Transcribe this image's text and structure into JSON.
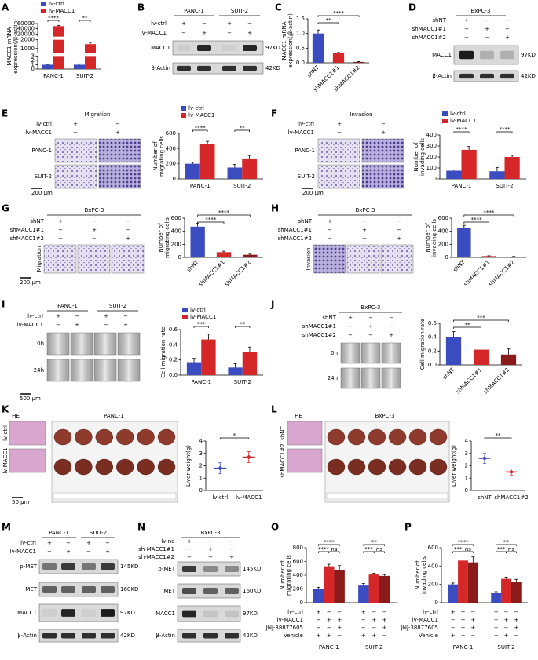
{
  "panels": [
    {
      "letter": "A"
    },
    {
      "letter": "B",
      "headers": [
        "PANC-1",
        "SUIT-2"
      ],
      "sign_rows": [
        {
          "label": "lv-ctrl",
          "signs": [
            "+",
            "−",
            "+",
            "−"
          ]
        },
        {
          "label": "lv-MACC1",
          "signs": [
            "−",
            "+",
            "−",
            "+"
          ]
        }
      ],
      "blots": [
        {
          "label": "MACC1",
          "size": "97KD"
        },
        {
          "label": "β-Actin",
          "size": "42KD"
        }
      ]
    },
    {
      "letter": "C"
    },
    {
      "letter": "D",
      "headers": [
        "BxPC-3"
      ],
      "sign_rows": [
        {
          "label": "shNT",
          "signs": [
            "+",
            "−",
            "−"
          ]
        },
        {
          "label": "shMACC1#1",
          "signs": [
            "−",
            "+",
            "−"
          ]
        },
        {
          "label": "shMACC1#2",
          "signs": [
            "−",
            "−",
            "+"
          ]
        }
      ],
      "blots": [
        {
          "label": "MACC1",
          "size": "97KD"
        },
        {
          "label": "β-Actin",
          "size": "42KD"
        }
      ]
    },
    {
      "letter": "E",
      "title": "Migration",
      "sign_rows": [
        {
          "label": "lv-ctrl",
          "signs": [
            "+",
            "−"
          ]
        },
        {
          "label": "lv-MACC1",
          "signs": [
            "−",
            "+"
          ]
        }
      ],
      "row_labels": [
        "PANC-1",
        "SUIT-2"
      ],
      "scale": "200 μm"
    },
    {
      "letter": "F",
      "title": "Invasion",
      "sign_rows": [
        {
          "label": "lv-ctrl",
          "signs": [
            "+",
            "−"
          ]
        },
        {
          "label": "lv-MACC1",
          "signs": [
            "−",
            "+"
          ]
        }
      ],
      "row_labels": [
        "PANC-1",
        "SUIT-2"
      ],
      "scale": "200 μm"
    },
    {
      "letter": "G",
      "headers": [
        "BxPC-3"
      ],
      "sign_rows": [
        {
          "label": "shNT",
          "signs": [
            "+",
            "−",
            "−"
          ]
        },
        {
          "label": "shMACC1#1",
          "signs": [
            "−",
            "+",
            "−"
          ]
        },
        {
          "label": "shMACC1#2",
          "signs": [
            "−",
            "−",
            "+"
          ]
        }
      ],
      "row_labels": [
        "Migration"
      ],
      "scale": "200 μm"
    },
    {
      "letter": "H",
      "headers": [
        "BxPC-3"
      ],
      "sign_rows": [
        {
          "label": "shNT",
          "signs": [
            "+",
            "−",
            "−"
          ]
        },
        {
          "label": "shMACC1#1",
          "signs": [
            "−",
            "+",
            "−"
          ]
        },
        {
          "label": "shMACC1#2",
          "signs": [
            "−",
            "−",
            "+"
          ]
        }
      ],
      "row_labels": [
        "Invasion"
      ]
    },
    {
      "letter": "I",
      "headers": [
        "PANC-1",
        "SUIT-2"
      ],
      "sign_rows": [
        {
          "label": "lv-ctrl",
          "signs": [
            "+",
            "−",
            "+",
            "−"
          ]
        },
        {
          "label": "lv-MACC1",
          "signs": [
            "−",
            "+",
            "−",
            "+"
          ]
        }
      ],
      "row_labels": [
        "0h",
        "24h"
      ],
      "scale": "500 μm"
    },
    {
      "letter": "J",
      "headers": [
        "BxPC-3"
      ],
      "sign_rows": [
        {
          "label": "shNT",
          "signs": [
            "+",
            "−",
            "−"
          ]
        },
        {
          "label": "shMACC1#1",
          "signs": [
            "−",
            "+",
            "−"
          ]
        },
        {
          "label": "shMACC1#2",
          "signs": [
            "−",
            "−",
            "+"
          ]
        }
      ],
      "row_labels": [
        "0h",
        "24h"
      ]
    },
    {
      "letter": "K",
      "stain": "HE",
      "title": "PANC-1",
      "row_labels": [
        "lv-ctrl",
        "lv-MACC1"
      ],
      "scale": "50 μm"
    },
    {
      "letter": "L",
      "stain": "HE",
      "title": "BxPC-3",
      "row_labels": [
        "shNT",
        "shMACC1#2"
      ]
    },
    {
      "letter": "M",
      "headers": [
        "PANC-1",
        "SUIT-2"
      ],
      "sign_rows": [
        {
          "label": "lv-ctrl",
          "signs": [
            "+",
            "−",
            "+",
            "−"
          ]
        },
        {
          "label": "lv-MACC1",
          "signs": [
            "−",
            "+",
            "−",
            "+"
          ]
        }
      ],
      "blots": [
        {
          "label": "p-MET",
          "size": "145KD"
        },
        {
          "label": "MET",
          "size": "160KD"
        },
        {
          "label": "MACC1",
          "size": "97KD"
        },
        {
          "label": "β-Actin",
          "size": "42KD"
        }
      ]
    },
    {
      "letter": "N",
      "headers": [
        "BxPC-3"
      ],
      "sign_rows": [
        {
          "label": "lv-nc",
          "signs": [
            "+",
            "−",
            "−"
          ]
        },
        {
          "label": "sh-MACC1#1",
          "signs": [
            "−",
            "+",
            "−"
          ]
        },
        {
          "label": "sh-MACC1#2",
          "signs": [
            "−",
            "−",
            "+"
          ]
        }
      ],
      "blots": [
        {
          "label": "p-MET",
          "size": "145KD"
        },
        {
          "label": "MET",
          "size": "160KD"
        },
        {
          "label": "MACC1",
          "size": "97KD"
        },
        {
          "label": "β-Actin",
          "size": "42KD"
        }
      ]
    },
    {
      "letter": "O",
      "sign_rows": [
        {
          "label": "lv-ctrl",
          "signs": [
            "+",
            "−",
            "−",
            "+",
            "−",
            "−"
          ]
        },
        {
          "label": "lv-MACC1",
          "signs": [
            "−",
            "+",
            "+",
            "−",
            "+",
            "+"
          ]
        },
        {
          "label": "JNJ-38877605",
          "signs": [
            "−",
            "−",
            "+",
            "−",
            "−",
            "+"
          ]
        },
        {
          "label": "Vehicle",
          "signs": [
            "+",
            "+",
            "−",
            "+",
            "+",
            "−"
          ]
        }
      ]
    },
    {
      "letter": "P",
      "sign_rows": [
        {
          "label": "lv-ctrl",
          "signs": [
            "+",
            "−",
            "−",
            "+",
            "−",
            "−"
          ]
        },
        {
          "label": "lv-MACC1",
          "signs": [
            "−",
            "+",
            "+",
            "−",
            "+",
            "+"
          ]
        },
        {
          "label": "JNJ-38877605",
          "signs": [
            "−",
            "−",
            "+",
            "−",
            "−",
            "+"
          ]
        },
        {
          "label": "Vehicle",
          "signs": [
            "+",
            "+",
            "−",
            "+",
            "+",
            "−"
          ]
        }
      ]
    }
  ],
  "chart_data": [
    {
      "type": "bar",
      "ylabel": [
        "MACC1 mRNA",
        "expression(/β-actin)"
      ],
      "categories": [
        "PANC-1",
        "SUIT-2"
      ],
      "series": [
        {
          "name": "lv-ctrl",
          "color": "#3b4cc0",
          "values": [
            1,
            1
          ],
          "errors": [
            0.1,
            0.2
          ]
        },
        {
          "name": "lv-MACC1",
          "color": "#d62728",
          "values": [
            50000,
            1500
          ],
          "errors": [
            3000,
            200
          ]
        }
      ],
      "ylim": [
        [
          0,
          3
        ],
        [
          500,
          2000
        ],
        [
          10000,
          60000
        ]
      ],
      "yticks": [
        [
          0,
          1,
          2,
          3
        ],
        [
          1000,
          2000
        ],
        [
          20000,
          40000,
          60000
        ]
      ],
      "annotations": [
        "****",
        "**"
      ]
    },
    {
      "type": "bar",
      "ylabel": [
        "MACC1 mRNA",
        "expression(/β-actin)"
      ],
      "categories": [
        "shNT",
        "shMACC1#1",
        "shMACC1#2"
      ],
      "values": [
        1.0,
        0.33,
        0.03
      ],
      "errors": [
        0.12,
        0.02,
        0.01
      ],
      "colors": [
        "#3b4cc0",
        "#d62728",
        "#8b1a1a"
      ],
      "ylim": [
        0,
        1.5
      ],
      "yticks": [
        {
          "value": 0,
          "label": "0.0"
        },
        0.5,
        {
          "value": 1,
          "label": "1.0"
        },
        1.5
      ],
      "annotations": [
        "**",
        "****"
      ]
    },
    {
      "type": "bar",
      "ylabel": [
        "Number of",
        "migrating cells"
      ],
      "categories": [
        "PANC-1",
        "SUIT-2"
      ],
      "series": [
        {
          "name": "lv-ctrl",
          "color": "#3b4cc0",
          "values": [
            200,
            150
          ],
          "errors": [
            20,
            40
          ]
        },
        {
          "name": "lv-MACC1",
          "color": "#d62728",
          "values": [
            460,
            270
          ],
          "errors": [
            35,
            40
          ]
        }
      ],
      "ylim": [
        0,
        600
      ],
      "yticks": [
        0,
        200,
        400,
        600
      ],
      "annotations": [
        "****",
        "**"
      ]
    },
    {
      "type": "bar",
      "ylabel": [
        "Number of",
        "invading cells"
      ],
      "categories": [
        "PANC-1",
        "SUIT-2"
      ],
      "series": [
        {
          "name": "lv-ctrl",
          "color": "#3b4cc0",
          "values": [
            75,
            70
          ],
          "errors": [
            8,
            35
          ]
        },
        {
          "name": "lv-MACC1",
          "color": "#d62728",
          "values": [
            265,
            200
          ],
          "errors": [
            30,
            15
          ]
        }
      ],
      "ylim": [
        0,
        400
      ],
      "yticks": [
        0,
        100,
        200,
        300,
        400
      ],
      "annotations": [
        "****",
        "****"
      ]
    },
    {
      "type": "bar",
      "ylabel": [
        "Number of",
        "migrating cells"
      ],
      "categories": [
        "shNT",
        "shMACC1#1",
        "shMACC1#2"
      ],
      "values": [
        470,
        80,
        40
      ],
      "errors": [
        50,
        15,
        10
      ],
      "colors": [
        "#3b4cc0",
        "#d62728",
        "#8b1a1a"
      ],
      "ylim": [
        0,
        600
      ],
      "yticks": [
        0,
        200,
        400,
        600
      ],
      "annotations": [
        "****",
        "****"
      ]
    },
    {
      "type": "bar",
      "ylabel": [
        "Number of",
        "invading cells"
      ],
      "categories": [
        "shNT",
        "shMACC1#1",
        "shMACC1#2"
      ],
      "values": [
        450,
        20,
        10
      ],
      "errors": [
        40,
        5,
        5
      ],
      "colors": [
        "#3b4cc0",
        "#d62728",
        "#8b1a1a"
      ],
      "ylim": [
        0,
        600
      ],
      "yticks": [
        0,
        200,
        400,
        600
      ],
      "annotations": [
        "****",
        "****"
      ]
    },
    {
      "type": "bar",
      "ylabel": [
        "Cell migration rate"
      ],
      "categories": [
        "PANC-1",
        "SUIT-2"
      ],
      "series": [
        {
          "name": "lv-ctrl",
          "color": "#3b4cc0",
          "values": [
            0.17,
            0.1
          ],
          "errors": [
            0.05,
            0.05
          ]
        },
        {
          "name": "lv-MACC1",
          "color": "#d62728",
          "values": [
            0.47,
            0.3
          ],
          "errors": [
            0.07,
            0.07
          ]
        }
      ],
      "ylim": [
        0,
        0.6
      ],
      "yticks": [
        {
          "value": 0,
          "label": "0.0"
        },
        0.2,
        0.4,
        0.6
      ],
      "annotations": [
        "***",
        "**"
      ]
    },
    {
      "type": "bar",
      "ylabel": [
        "Cell migration rate"
      ],
      "categories": [
        "shNT",
        "shMACC1#1",
        "shMACC1#2"
      ],
      "values": [
        0.4,
        0.22,
        0.15
      ],
      "errors": [
        0.08,
        0.07,
        0.08
      ],
      "colors": [
        "#3b4cc0",
        "#d62728",
        "#8b1a1a"
      ],
      "ylim": [
        0,
        0.6
      ],
      "yticks": [
        {
          "value": 0,
          "label": "0.0"
        },
        0.2,
        0.4,
        0.6
      ],
      "annotations": [
        "**",
        "***"
      ]
    },
    {
      "type": "dot",
      "ylabel": [
        "Liver weight(g)"
      ],
      "categories": [
        "lv-ctrl",
        "lv-MACC1"
      ],
      "values": [
        1.8,
        2.7
      ],
      "errors": [
        0.45,
        0.45
      ],
      "colors": [
        "#3b4cc0",
        "#d62728"
      ],
      "ylim": [
        0,
        4
      ],
      "yticks": [
        0,
        1,
        2,
        3,
        4
      ],
      "annotations": [
        "*"
      ]
    },
    {
      "type": "dot",
      "ylabel": [
        "Liver weight(g)"
      ],
      "categories": [
        "shNT",
        "shMACC1#2"
      ],
      "values": [
        2.6,
        1.5
      ],
      "errors": [
        0.4,
        0.25
      ],
      "colors": [
        "#3b4cc0",
        "#d62728"
      ],
      "ylim": [
        0,
        4
      ],
      "yticks": [
        0,
        1,
        2,
        3,
        4
      ],
      "annotations": [
        "**"
      ]
    },
    {
      "type": "bar",
      "ylabel": [
        "Number of",
        "migrating cells"
      ],
      "categories": [
        "PANC-1",
        "SUIT-2"
      ],
      "series": [
        {
          "color": "#3b4cc0",
          "values": [
            200,
            250
          ],
          "errors": [
            25,
            30
          ]
        },
        {
          "color": "#d62728",
          "values": [
            530,
            410
          ],
          "errors": [
            30,
            20
          ]
        },
        {
          "color": "#8b1a1a",
          "values": [
            480,
            390
          ],
          "errors": [
            60,
            20
          ]
        }
      ],
      "ylim": [
        0,
        800
      ],
      "yticks": [
        0,
        200,
        400,
        600,
        800
      ],
      "annotations": [
        "****",
        "****",
        "ns",
        "**",
        "***",
        "ns"
      ]
    },
    {
      "type": "bar",
      "ylabel": [
        "Number of",
        "invading cells"
      ],
      "categories": [
        "PANC-1",
        "SUIT-2"
      ],
      "series": [
        {
          "color": "#3b4cc0",
          "values": [
            200,
            110
          ],
          "errors": [
            15,
            10
          ]
        },
        {
          "color": "#d62728",
          "values": [
            460,
            260
          ],
          "errors": [
            50,
            20
          ]
        },
        {
          "color": "#8b1a1a",
          "values": [
            440,
            230
          ],
          "errors": [
            60,
            25
          ]
        }
      ],
      "ylim": [
        0,
        600
      ],
      "yticks": [
        0,
        200,
        400,
        600
      ],
      "annotations": [
        "****",
        "***",
        "ns",
        "**",
        "***",
        "ns"
      ]
    }
  ]
}
